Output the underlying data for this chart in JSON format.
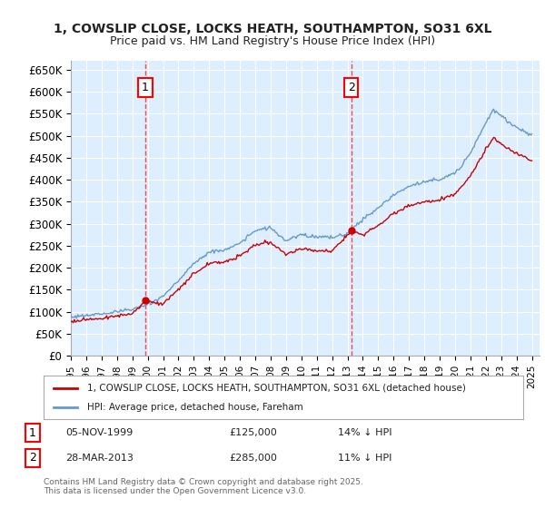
{
  "title_line1": "1, COWSLIP CLOSE, LOCKS HEATH, SOUTHAMPTON, SO31 6XL",
  "title_line2": "Price paid vs. HM Land Registry's House Price Index (HPI)",
  "ylabel_ticks": [
    "£0",
    "£50K",
    "£100K",
    "£150K",
    "£200K",
    "£250K",
    "£300K",
    "£350K",
    "£400K",
    "£450K",
    "£500K",
    "£550K",
    "£600K",
    "£650K"
  ],
  "ytick_values": [
    0,
    50000,
    100000,
    150000,
    200000,
    250000,
    300000,
    350000,
    400000,
    450000,
    500000,
    550000,
    600000,
    650000
  ],
  "xlim_start": 1995.0,
  "xlim_end": 2025.5,
  "ylim_min": 0,
  "ylim_max": 670000,
  "sale1_date": 1999.85,
  "sale1_price": 125000,
  "sale2_date": 2013.24,
  "sale2_price": 285000,
  "legend_label_red": "1, COWSLIP CLOSE, LOCKS HEATH, SOUTHAMPTON, SO31 6XL (detached house)",
  "legend_label_blue": "HPI: Average price, detached house, Fareham",
  "annotation1_text": "05-NOV-1999    £125,000        14% ↓ HPI",
  "annotation2_text": "28-MAR-2013    £285,000        11% ↓ HPI",
  "footer_text": "Contains HM Land Registry data © Crown copyright and database right 2025.\nThis data is licensed under the Open Government Licence v3.0.",
  "red_color": "#cc0000",
  "blue_color": "#6699cc",
  "bg_color": "#ddeeff",
  "grid_color": "#ffffff",
  "vline_color": "#ff4444"
}
